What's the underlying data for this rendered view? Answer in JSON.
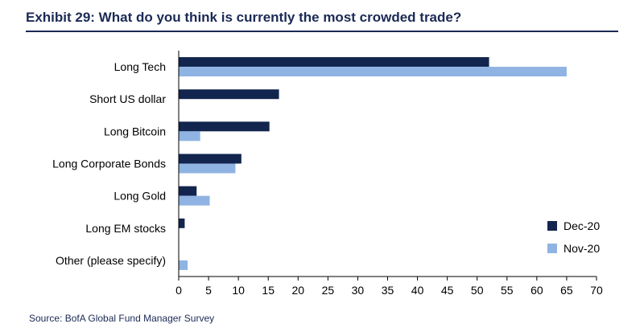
{
  "title": "Exhibit 29: What do you think is currently the most crowded trade?",
  "source": "Source: BofA Global Fund Manager Survey",
  "chart_data": {
    "type": "bar",
    "orientation": "horizontal",
    "title": "Exhibit 29: What do you think is currently the most crowded trade?",
    "xlabel": "",
    "ylabel": "",
    "xlim": [
      0,
      70
    ],
    "xticks": [
      0,
      5,
      10,
      15,
      20,
      25,
      30,
      35,
      40,
      45,
      50,
      55,
      60,
      65,
      70
    ],
    "grid": false,
    "legend_position": "bottom-right",
    "categories": [
      "Long Tech",
      "Short US dollar",
      "Long Bitcoin",
      "Long Corporate Bonds",
      "Long Gold",
      "Long EM stocks",
      "Other (please specify)"
    ],
    "series": [
      {
        "name": "Dec-20",
        "color": "#12254e",
        "values": [
          52,
          16.8,
          15.2,
          10.5,
          3.0,
          1.0,
          0
        ]
      },
      {
        "name": "Nov-20",
        "color": "#8fb4e3",
        "values": [
          65,
          0,
          3.6,
          9.5,
          5.2,
          0,
          1.5
        ]
      }
    ]
  }
}
